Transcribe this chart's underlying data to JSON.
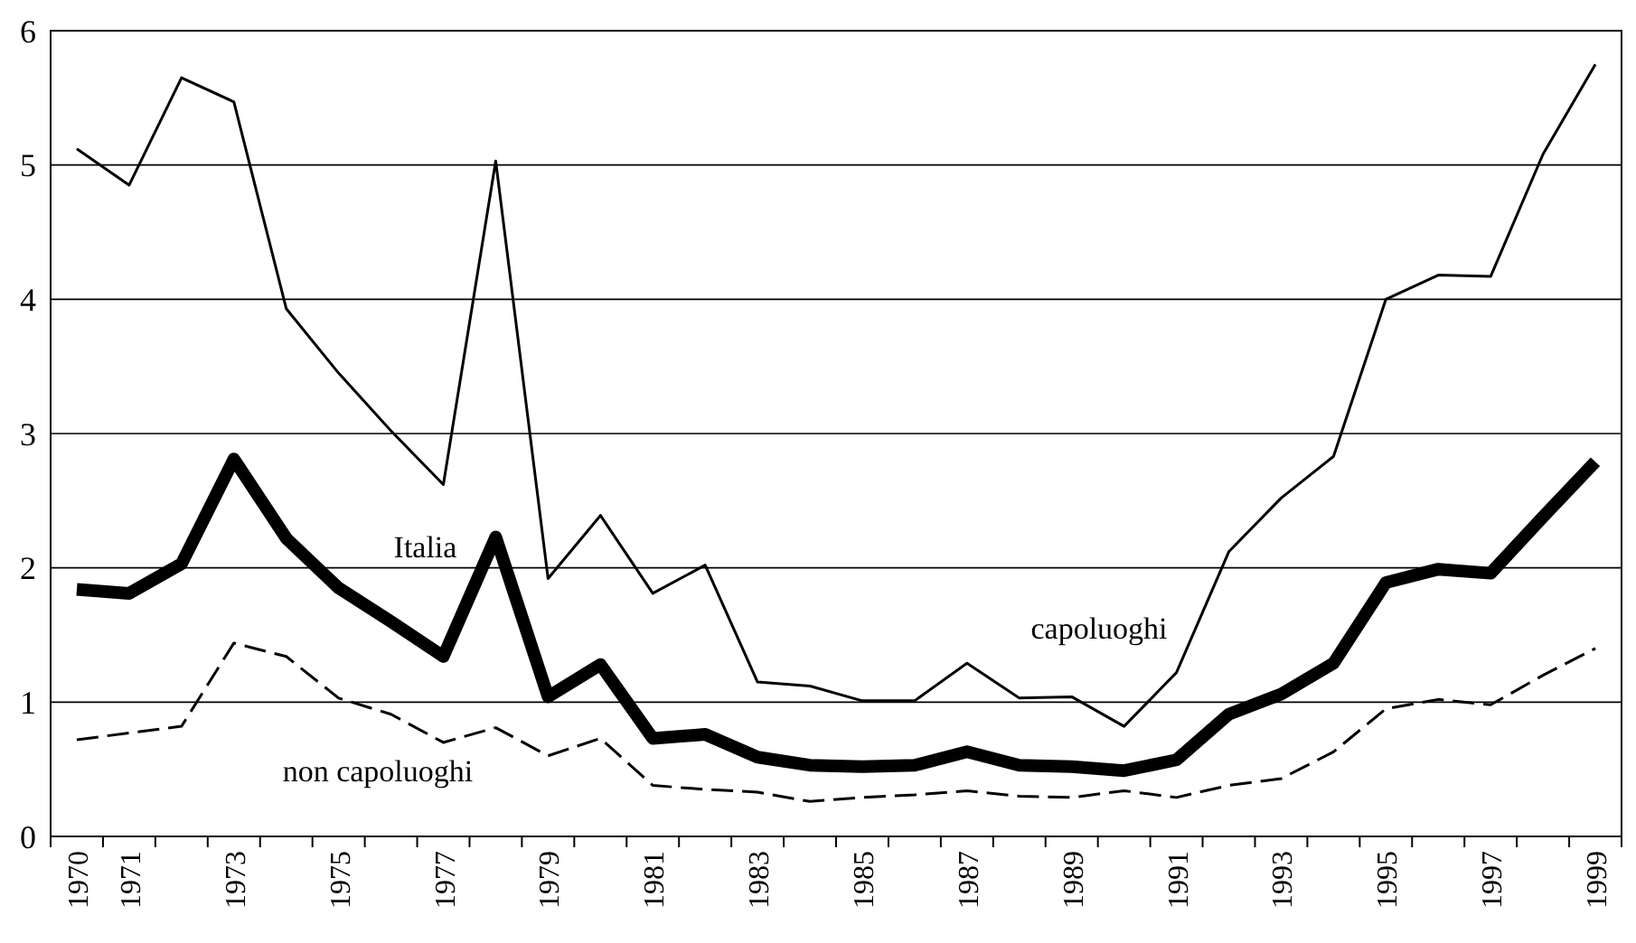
{
  "chart_data": {
    "type": "line",
    "categories": [
      "1970",
      "1971",
      null,
      "1973",
      null,
      "1975",
      null,
      "1977",
      null,
      "1979",
      null,
      "1981",
      null,
      "1983",
      null,
      "1985",
      null,
      "1987",
      null,
      "1989",
      null,
      "1991",
      null,
      "1993",
      null,
      "1995",
      null,
      "1997",
      null,
      "1999"
    ],
    "ylim": [
      0,
      6
    ],
    "yticks": [
      0,
      1,
      2,
      3,
      4,
      5,
      6
    ],
    "grid": "y",
    "legend": false,
    "marker": "none",
    "series": [
      {
        "name": "capoluoghi",
        "color": "#000000",
        "line_style": "solid",
        "values": [
          5.12,
          4.85,
          5.65,
          5.47,
          3.93,
          3.45,
          3.02,
          2.62,
          5.03,
          1.92,
          2.39,
          1.81,
          2.02,
          1.15,
          1.12,
          1.01,
          1.01,
          1.29,
          1.03,
          1.04,
          0.82,
          1.22,
          2.12,
          2.52,
          2.83,
          4.0,
          4.18,
          4.17,
          5.08,
          5.75
        ]
      },
      {
        "name": "Italia",
        "color": "#000000",
        "line_style": "solid",
        "values": [
          1.84,
          1.81,
          2.03,
          2.81,
          2.22,
          1.85,
          1.6,
          1.34,
          2.23,
          1.04,
          1.28,
          0.73,
          0.76,
          0.59,
          0.53,
          0.52,
          0.53,
          0.63,
          0.53,
          0.52,
          0.49,
          0.57,
          0.91,
          1.06,
          1.29,
          1.89,
          1.99,
          1.96,
          2.38,
          2.79
        ]
      },
      {
        "name": "non capoluoghi",
        "color": "#000000",
        "line_style": "dashed",
        "values": [
          0.72,
          0.77,
          0.82,
          1.44,
          1.34,
          1.03,
          0.91,
          0.7,
          0.81,
          0.6,
          0.73,
          0.38,
          0.35,
          0.33,
          0.26,
          0.29,
          0.31,
          0.34,
          0.3,
          0.29,
          0.34,
          0.29,
          0.38,
          0.43,
          0.63,
          0.95,
          1.02,
          0.98,
          1.2,
          1.4
        ]
      }
    ]
  }
}
